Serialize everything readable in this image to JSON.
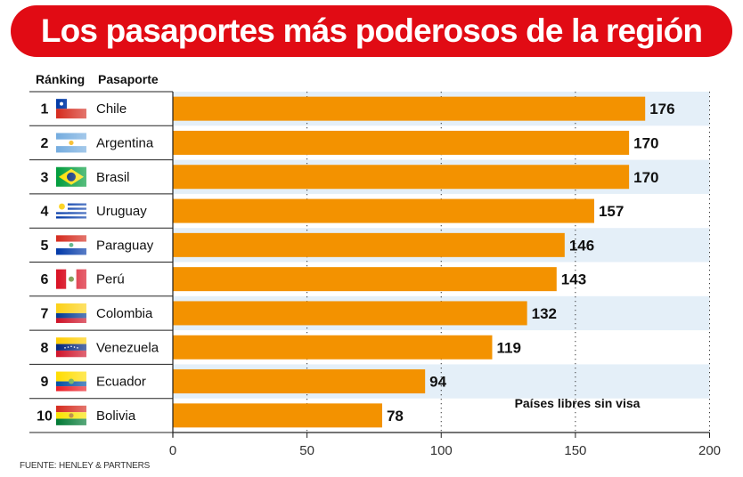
{
  "title": "Los pasaportes más poderosos de la región",
  "source": "FUENTE: HENLEY & PARTNERS",
  "chart_data": {
    "type": "bar",
    "orientation": "horizontal",
    "column_headers": {
      "rank": "Ránking",
      "passport": "Pasaporte"
    },
    "categories": [
      "Chile",
      "Argentina",
      "Brasil",
      "Uruguay",
      "Paraguay",
      "Perú",
      "Colombia",
      "Venezuela",
      "Ecuador",
      "Bolivia"
    ],
    "ranks": [
      "1",
      "2",
      "3",
      "4",
      "5",
      "6",
      "7",
      "8",
      "9",
      "10"
    ],
    "values": [
      176,
      170,
      170,
      157,
      146,
      143,
      132,
      119,
      94,
      78
    ],
    "annotation": "Países libres sin visa",
    "xlim": [
      0,
      200
    ],
    "xticks": [
      0,
      50,
      100,
      150,
      200
    ],
    "grid": "vertical dotted",
    "colors": {
      "bar": "#f39200",
      "title_bg": "#e10b14",
      "row_alt": "#e4eff8"
    }
  }
}
